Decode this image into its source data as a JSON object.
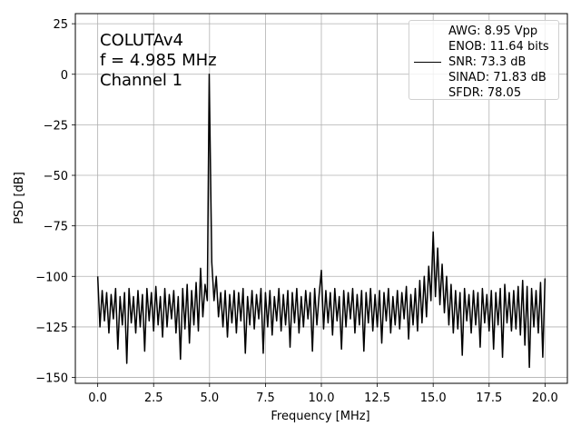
{
  "chart_data": {
    "type": "line",
    "annotations": [
      "COLUTAv4",
      "f = 4.985 MHz",
      "Channel 1"
    ],
    "xlabel": "Frequency [MHz]",
    "ylabel": "PSD [dB]",
    "xlim": [
      -1,
      21
    ],
    "ylim": [
      -152.9,
      30
    ],
    "xticks": [
      {
        "value": 0,
        "label": "0.0"
      },
      2.5,
      {
        "value": 5,
        "label": "5.0"
      },
      7.5,
      {
        "value": 10,
        "label": "10.0"
      },
      12.5,
      {
        "value": 15,
        "label": "15.0"
      },
      17.5,
      {
        "value": 20,
        "label": "20.0"
      }
    ],
    "yticks": [
      25,
      0,
      {
        "value": -25,
        "label": "−25"
      },
      {
        "value": -50,
        "label": "−50"
      },
      {
        "value": -75,
        "label": "−75"
      },
      {
        "value": -100,
        "label": "−100"
      },
      {
        "value": -125,
        "label": "−125"
      },
      {
        "value": -150,
        "label": "−150"
      }
    ],
    "grid": true,
    "legend": "upper right",
    "x": [
      0.0,
      0.1,
      0.2,
      0.3,
      0.4,
      0.5,
      0.6,
      0.7,
      0.8,
      0.9,
      1.0,
      1.1,
      1.2,
      1.3,
      1.4,
      1.5,
      1.6,
      1.7,
      1.8,
      1.9,
      2.0,
      2.1,
      2.2,
      2.3,
      2.4,
      2.5,
      2.6,
      2.7,
      2.8,
      2.9,
      3.0,
      3.1,
      3.2,
      3.3,
      3.4,
      3.5,
      3.6,
      3.7,
      3.8,
      3.9,
      4.0,
      4.1,
      4.2,
      4.3,
      4.4,
      4.5,
      4.6,
      4.7,
      4.8,
      4.9,
      4.985,
      5.1,
      5.2,
      5.3,
      5.4,
      5.5,
      5.6,
      5.7,
      5.8,
      5.9,
      6.0,
      6.1,
      6.2,
      6.3,
      6.4,
      6.5,
      6.6,
      6.7,
      6.8,
      6.9,
      7.0,
      7.1,
      7.2,
      7.3,
      7.4,
      7.5,
      7.6,
      7.7,
      7.8,
      7.9,
      8.0,
      8.1,
      8.2,
      8.3,
      8.4,
      8.5,
      8.6,
      8.7,
      8.8,
      8.9,
      9.0,
      9.1,
      9.2,
      9.3,
      9.4,
      9.5,
      9.6,
      9.7,
      9.8,
      9.9,
      10.0,
      10.1,
      10.2,
      10.3,
      10.4,
      10.5,
      10.6,
      10.7,
      10.8,
      10.9,
      11.0,
      11.1,
      11.2,
      11.3,
      11.4,
      11.5,
      11.6,
      11.7,
      11.8,
      11.9,
      12.0,
      12.1,
      12.2,
      12.3,
      12.4,
      12.5,
      12.6,
      12.7,
      12.8,
      12.9,
      13.0,
      13.1,
      13.2,
      13.3,
      13.4,
      13.5,
      13.6,
      13.7,
      13.8,
      13.9,
      14.0,
      14.1,
      14.2,
      14.3,
      14.4,
      14.5,
      14.6,
      14.7,
      14.8,
      14.9,
      15.0,
      15.1,
      15.2,
      15.3,
      15.4,
      15.5,
      15.6,
      15.7,
      15.8,
      15.9,
      16.0,
      16.1,
      16.2,
      16.3,
      16.4,
      16.5,
      16.6,
      16.7,
      16.8,
      16.9,
      17.0,
      17.1,
      17.2,
      17.3,
      17.4,
      17.5,
      17.6,
      17.7,
      17.8,
      17.9,
      18.0,
      18.1,
      18.2,
      18.3,
      18.4,
      18.5,
      18.6,
      18.7,
      18.8,
      18.9,
      19.0,
      19.1,
      19.2,
      19.3,
      19.4,
      19.5,
      19.6,
      19.7,
      19.8,
      19.9,
      20.0
    ],
    "series": [
      {
        "name": "AWG: 8.95 Vpp\nENOB: 11.64 bits\nSNR: 73.3 dB\nSINAD: 71.83 dB\nSFDR: 78.05",
        "color": "#000000",
        "values": [
          -100,
          -125,
          -107,
          -122,
          -108,
          -128,
          -109,
          -121,
          -106,
          -136,
          -110,
          -124,
          -108,
          -143,
          -106,
          -123,
          -110,
          -128,
          -107,
          -125,
          -109,
          -137,
          -106,
          -122,
          -108,
          -127,
          -105,
          -124,
          -110,
          -130,
          -106,
          -125,
          -109,
          -121,
          -107,
          -128,
          -110,
          -141,
          -106,
          -126,
          -104,
          -133,
          -107,
          -124,
          -103,
          -127,
          -96,
          -120,
          -104,
          -112,
          0,
          -93,
          -112,
          -100,
          -120,
          -108,
          -125,
          -107,
          -130,
          -109,
          -123,
          -107,
          -128,
          -108,
          -122,
          -106,
          -138,
          -110,
          -124,
          -107,
          -126,
          -109,
          -121,
          -106,
          -138,
          -108,
          -125,
          -107,
          -129,
          -110,
          -122,
          -106,
          -127,
          -109,
          -124,
          -107,
          -135,
          -108,
          -123,
          -106,
          -128,
          -110,
          -125,
          -107,
          -121,
          -108,
          -137,
          -106,
          -124,
          -109,
          -97,
          -126,
          -107,
          -123,
          -108,
          -129,
          -106,
          -122,
          -110,
          -136,
          -107,
          -125,
          -108,
          -121,
          -106,
          -128,
          -109,
          -124,
          -107,
          -137,
          -108,
          -123,
          -106,
          -127,
          -109,
          -125,
          -107,
          -133,
          -108,
          -122,
          -106,
          -128,
          -110,
          -124,
          -107,
          -126,
          -108,
          -121,
          -105,
          -131,
          -109,
          -124,
          -106,
          -127,
          -102,
          -123,
          -100,
          -120,
          -95,
          -112,
          -78,
          -110,
          -86,
          -114,
          -94,
          -118,
          -100,
          -124,
          -104,
          -128,
          -107,
          -126,
          -108,
          -139,
          -106,
          -122,
          -109,
          -128,
          -107,
          -124,
          -108,
          -135,
          -106,
          -123,
          -109,
          -127,
          -107,
          -136,
          -108,
          -124,
          -106,
          -140,
          -104,
          -123,
          -108,
          -127,
          -107,
          -126,
          -105,
          -129,
          -102,
          -134,
          -105,
          -145,
          -106,
          -125,
          -107,
          -128,
          -103,
          -140,
          -101
        ]
      }
    ]
  }
}
